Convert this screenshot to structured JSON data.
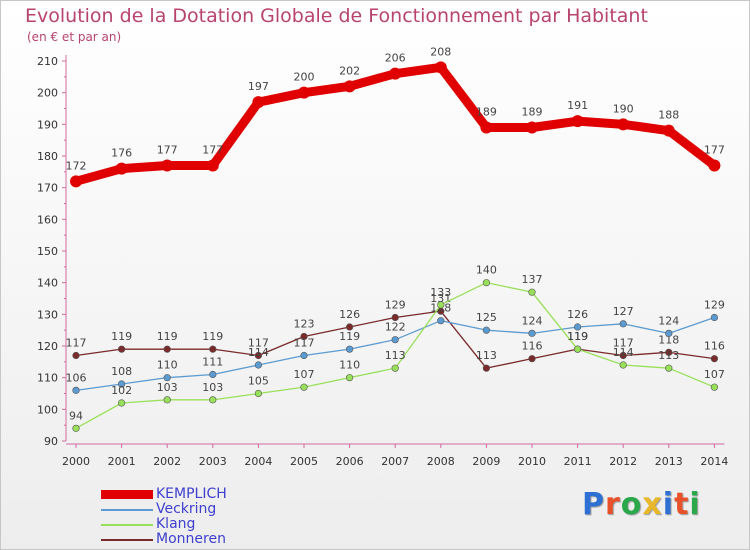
{
  "title": "Evolution de la Dotation Globale de Fonctionnement par Habitant",
  "subtitle": "(en € et par an)",
  "logo": {
    "text": "Proxiti",
    "colors": [
      "#2e6fd4",
      "#e8512a",
      "#2aa84a",
      "#e8b82a",
      "#2e6fd4",
      "#e8512a",
      "#2aa84a"
    ]
  },
  "chart_data": {
    "type": "line",
    "title": "Evolution de la Dotation Globale de Fonctionnement par Habitant",
    "subtitle": "(en € et par an)",
    "xlabel": "",
    "ylabel": "",
    "ylim": [
      90,
      210
    ],
    "yticks": [
      "90",
      "100",
      "110",
      "120",
      "130",
      "140",
      "150",
      "160",
      "170",
      "180",
      "190",
      "200",
      "210"
    ],
    "categories": [
      "2000",
      "2001",
      "2002",
      "2003",
      "2004",
      "2005",
      "2006",
      "2007",
      "2008",
      "2009",
      "2010",
      "2011",
      "2012",
      "2013",
      "2014"
    ],
    "grid": false,
    "legend_position": "bottom-left",
    "series": [
      {
        "name": "KEMPLICH",
        "color": "#e00000",
        "values": [
          172,
          176,
          177,
          177,
          197,
          200,
          202,
          206,
          208,
          189,
          189,
          191,
          190,
          188,
          177
        ]
      },
      {
        "name": "Veckring",
        "color": "#5b9bd1",
        "values": [
          106,
          108,
          110,
          111,
          114,
          117,
          119,
          122,
          128,
          125,
          124,
          126,
          127,
          124,
          129
        ]
      },
      {
        "name": "Klang",
        "color": "#99e05a",
        "values": [
          94,
          102,
          103,
          103,
          105,
          107,
          110,
          113,
          133,
          140,
          137,
          119,
          114,
          113,
          107
        ]
      },
      {
        "name": "Monneren",
        "color": "#7a2a2a",
        "values": [
          117,
          119,
          119,
          119,
          117,
          123,
          126,
          129,
          131,
          113,
          116,
          119,
          117,
          118,
          116
        ]
      }
    ]
  }
}
